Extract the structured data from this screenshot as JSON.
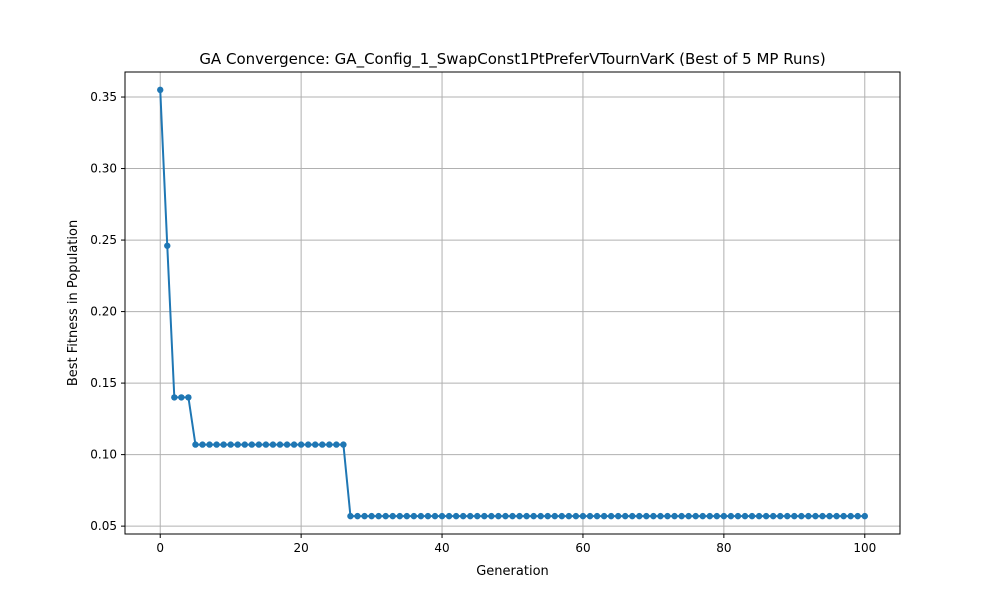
{
  "chart_data": {
    "type": "line",
    "title": "GA Convergence: GA_Config_1_SwapConst1PtPreferVTournVarK (Best of 5 MP Runs)",
    "xlabel": "Generation",
    "ylabel": "Best Fitness in Population",
    "xlim": [
      -5,
      105
    ],
    "ylim": [
      0.0445,
      0.3675
    ],
    "xticks": [
      0,
      20,
      40,
      60,
      80,
      100
    ],
    "xtick_labels": [
      "0",
      "20",
      "40",
      "60",
      "80",
      "100"
    ],
    "yticks": [
      0.05,
      0.1,
      0.15,
      0.2,
      0.25,
      0.3,
      0.35
    ],
    "ytick_labels": [
      "0.05",
      "0.10",
      "0.15",
      "0.20",
      "0.25",
      "0.30",
      "0.35"
    ],
    "grid": true,
    "color": "#1f77b4",
    "marker": "circle",
    "series": [
      {
        "x": [
          0,
          1,
          2,
          3,
          4,
          5,
          6,
          7,
          8,
          9,
          10,
          11,
          12,
          13,
          14,
          15,
          16,
          17,
          18,
          19,
          20,
          21,
          22,
          23,
          24,
          25,
          26,
          27,
          28,
          29,
          30,
          31,
          32,
          33,
          34,
          35,
          36,
          37,
          38,
          39,
          40,
          41,
          42,
          43,
          44,
          45,
          46,
          47,
          48,
          49,
          50,
          51,
          52,
          53,
          54,
          55,
          56,
          57,
          58,
          59,
          60,
          61,
          62,
          63,
          64,
          65,
          66,
          67,
          68,
          69,
          70,
          71,
          72,
          73,
          74,
          75,
          76,
          77,
          78,
          79,
          80,
          81,
          82,
          83,
          84,
          85,
          86,
          87,
          88,
          89,
          90,
          91,
          92,
          93,
          94,
          95,
          96,
          97,
          98,
          99,
          100
        ],
        "y": [
          0.355,
          0.246,
          0.14,
          0.14,
          0.14,
          0.107,
          0.107,
          0.107,
          0.107,
          0.107,
          0.107,
          0.107,
          0.107,
          0.107,
          0.107,
          0.107,
          0.107,
          0.107,
          0.107,
          0.107,
          0.107,
          0.107,
          0.107,
          0.107,
          0.107,
          0.107,
          0.107,
          0.057,
          0.057,
          0.057,
          0.057,
          0.057,
          0.057,
          0.057,
          0.057,
          0.057,
          0.057,
          0.057,
          0.057,
          0.057,
          0.057,
          0.057,
          0.057,
          0.057,
          0.057,
          0.057,
          0.057,
          0.057,
          0.057,
          0.057,
          0.057,
          0.057,
          0.057,
          0.057,
          0.057,
          0.057,
          0.057,
          0.057,
          0.057,
          0.057,
          0.057,
          0.057,
          0.057,
          0.057,
          0.057,
          0.057,
          0.057,
          0.057,
          0.057,
          0.057,
          0.057,
          0.057,
          0.057,
          0.057,
          0.057,
          0.057,
          0.057,
          0.057,
          0.057,
          0.057,
          0.057,
          0.057,
          0.057,
          0.057,
          0.057,
          0.057,
          0.057,
          0.057,
          0.057,
          0.057,
          0.057,
          0.057,
          0.057,
          0.057,
          0.057,
          0.057,
          0.057,
          0.057,
          0.057,
          0.057,
          0.057
        ]
      }
    ]
  }
}
